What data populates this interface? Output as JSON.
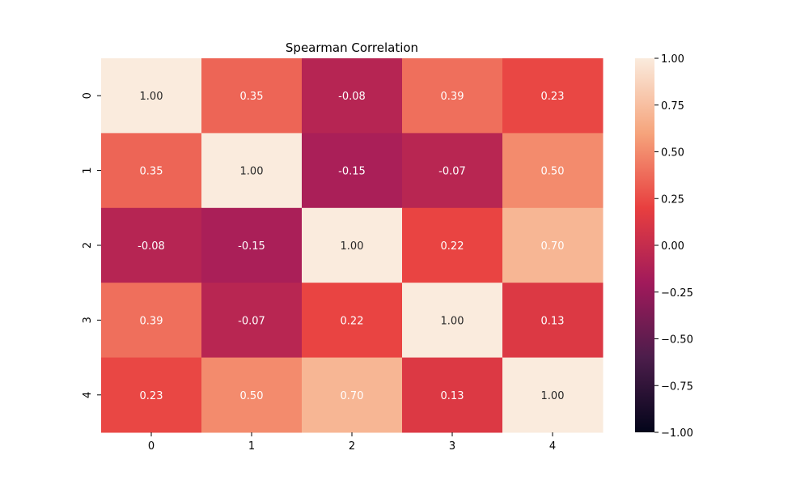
{
  "chart_data": {
    "type": "heatmap",
    "title": "Spearman Correlation",
    "xlabel": "",
    "ylabel": "",
    "x_categories": [
      "0",
      "1",
      "2",
      "3",
      "4"
    ],
    "y_categories": [
      "0",
      "1",
      "2",
      "3",
      "4"
    ],
    "matrix": [
      [
        1.0,
        0.35,
        -0.08,
        0.39,
        0.23
      ],
      [
        0.35,
        1.0,
        -0.15,
        -0.07,
        0.5
      ],
      [
        -0.08,
        -0.15,
        1.0,
        0.22,
        0.7
      ],
      [
        0.39,
        -0.07,
        0.22,
        1.0,
        0.13
      ],
      [
        0.23,
        0.5,
        0.7,
        0.13,
        1.0
      ]
    ],
    "annotation_format": "0.00",
    "colorbar": {
      "range": [
        -1.0,
        1.0
      ],
      "ticks": [
        1.0,
        0.75,
        0.5,
        0.25,
        0.0,
        -0.25,
        -0.5,
        -0.75,
        -1.0
      ],
      "tick_labels": [
        "1.00",
        "0.75",
        "0.50",
        "0.25",
        "0.00",
        "−0.25",
        "−0.50",
        "−0.75",
        "−1.00"
      ],
      "colormap": "rocket",
      "colormap_stops": [
        "#03051a",
        "#4c1d4b",
        "#a11a5b",
        "#e83f3f",
        "#f6a47c",
        "#faebdd"
      ]
    },
    "grid": false,
    "legend": "colorbar-right"
  }
}
